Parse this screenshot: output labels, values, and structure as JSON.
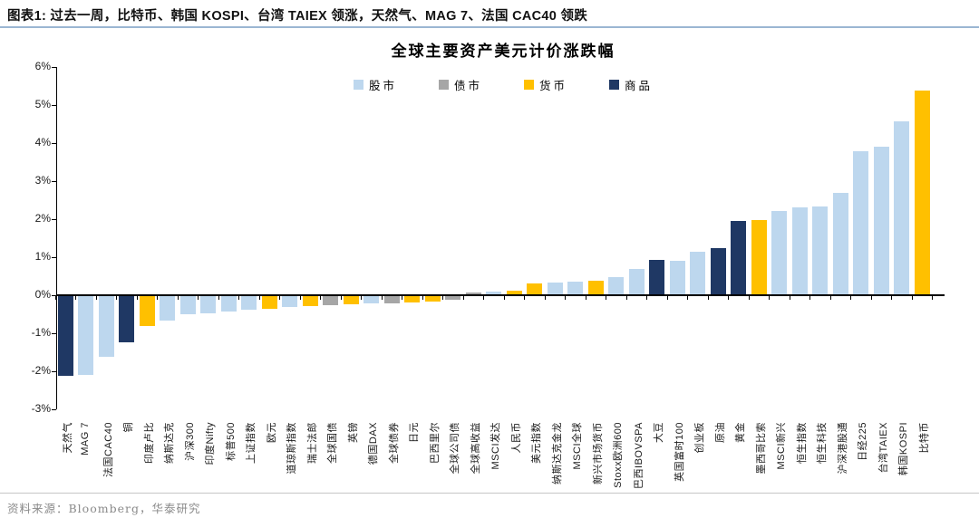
{
  "header": {
    "title": "图表1:  过去一周，比特币、韩国 KOSPI、台湾 TAIEX 领涨，天然气、MAG 7、法国 CAC40 领跌"
  },
  "footer": {
    "source": "资料来源：Bloomberg，华泰研究"
  },
  "chart_data": {
    "type": "bar",
    "title": "全球主要资产美元计价涨跌幅",
    "ylim": [
      -3,
      6
    ],
    "ytick_step": 1,
    "ytick_labels": [
      "6%",
      "5%",
      "4%",
      "3%",
      "2%",
      "1%",
      "0%",
      "-1%",
      "-2%",
      "-3%"
    ],
    "grid": false,
    "legend_position": "top-center",
    "legend": [
      {
        "label": "股市",
        "color": "#BDD7EE"
      },
      {
        "label": "债市",
        "color": "#A6A6A6"
      },
      {
        "label": "货币",
        "color": "#FFC000"
      },
      {
        "label": "商品",
        "color": "#1F3864"
      }
    ],
    "bars": [
      {
        "label": "天然气",
        "value": -2.1,
        "category": "商品"
      },
      {
        "label": "MAG 7",
        "value": -2.08,
        "category": "股市"
      },
      {
        "label": "法国CAC40",
        "value": -1.59,
        "category": "股市"
      },
      {
        "label": "铜",
        "value": -1.21,
        "category": "商品"
      },
      {
        "label": "印度卢比",
        "value": -0.78,
        "category": "货币"
      },
      {
        "label": "纳斯达克",
        "value": -0.65,
        "category": "股市"
      },
      {
        "label": "沪深300",
        "value": -0.47,
        "category": "股市"
      },
      {
        "label": "印度Nifty",
        "value": -0.45,
        "category": "股市"
      },
      {
        "label": "标普500",
        "value": -0.41,
        "category": "股市"
      },
      {
        "label": "上证指数",
        "value": -0.36,
        "category": "股市"
      },
      {
        "label": "欧元",
        "value": -0.34,
        "category": "货币"
      },
      {
        "label": "道琼斯指数",
        "value": -0.28,
        "category": "股市"
      },
      {
        "label": "瑞士法郎",
        "value": -0.26,
        "category": "货币"
      },
      {
        "label": "全球国债",
        "value": -0.24,
        "category": "债市"
      },
      {
        "label": "英镑",
        "value": -0.22,
        "category": "货币"
      },
      {
        "label": "德国DAX",
        "value": -0.2,
        "category": "股市"
      },
      {
        "label": "全球债券",
        "value": -0.18,
        "category": "债市"
      },
      {
        "label": "日元",
        "value": -0.16,
        "category": "货币"
      },
      {
        "label": "巴西里尔",
        "value": -0.14,
        "category": "货币"
      },
      {
        "label": "全球公司债",
        "value": -0.1,
        "category": "债市"
      },
      {
        "label": "全球高收益",
        "value": 0.08,
        "category": "债市"
      },
      {
        "label": "MSCI发达",
        "value": 0.1,
        "category": "股市"
      },
      {
        "label": "人民币",
        "value": 0.13,
        "category": "货币"
      },
      {
        "label": "美元指数",
        "value": 0.3,
        "category": "货币"
      },
      {
        "label": "纳斯达克金龙",
        "value": 0.34,
        "category": "股市"
      },
      {
        "label": "MSCI全球",
        "value": 0.36,
        "category": "股市"
      },
      {
        "label": "新兴市场货币",
        "value": 0.37,
        "category": "货币"
      },
      {
        "label": "Stoxx欧洲600",
        "value": 0.48,
        "category": "股市"
      },
      {
        "label": "巴西IBOVSPA",
        "value": 0.7,
        "category": "股市"
      },
      {
        "label": "大豆",
        "value": 0.92,
        "category": "商品"
      },
      {
        "label": "英国富时100",
        "value": 0.9,
        "category": "股市"
      },
      {
        "label": "创业板",
        "value": 1.13,
        "category": "股市"
      },
      {
        "label": "原油",
        "value": 1.24,
        "category": "商品"
      },
      {
        "label": "黄金",
        "value": 1.95,
        "category": "商品"
      },
      {
        "label": "墨西哥比索",
        "value": 1.97,
        "category": "货币"
      },
      {
        "label": "MSCI新兴",
        "value": 2.22,
        "category": "股市"
      },
      {
        "label": "恒生指数",
        "value": 2.3,
        "category": "股市"
      },
      {
        "label": "恒生科技",
        "value": 2.34,
        "category": "股市"
      },
      {
        "label": "沪深港股通",
        "value": 2.68,
        "category": "股市"
      },
      {
        "label": "日经225",
        "value": 3.78,
        "category": "股市"
      },
      {
        "label": "台湾TAIEX",
        "value": 3.9,
        "category": "股市"
      },
      {
        "label": "韩国KOSPI",
        "value": 4.57,
        "category": "股市"
      },
      {
        "label": "比特币",
        "value": 5.37,
        "category": "货币"
      }
    ]
  }
}
